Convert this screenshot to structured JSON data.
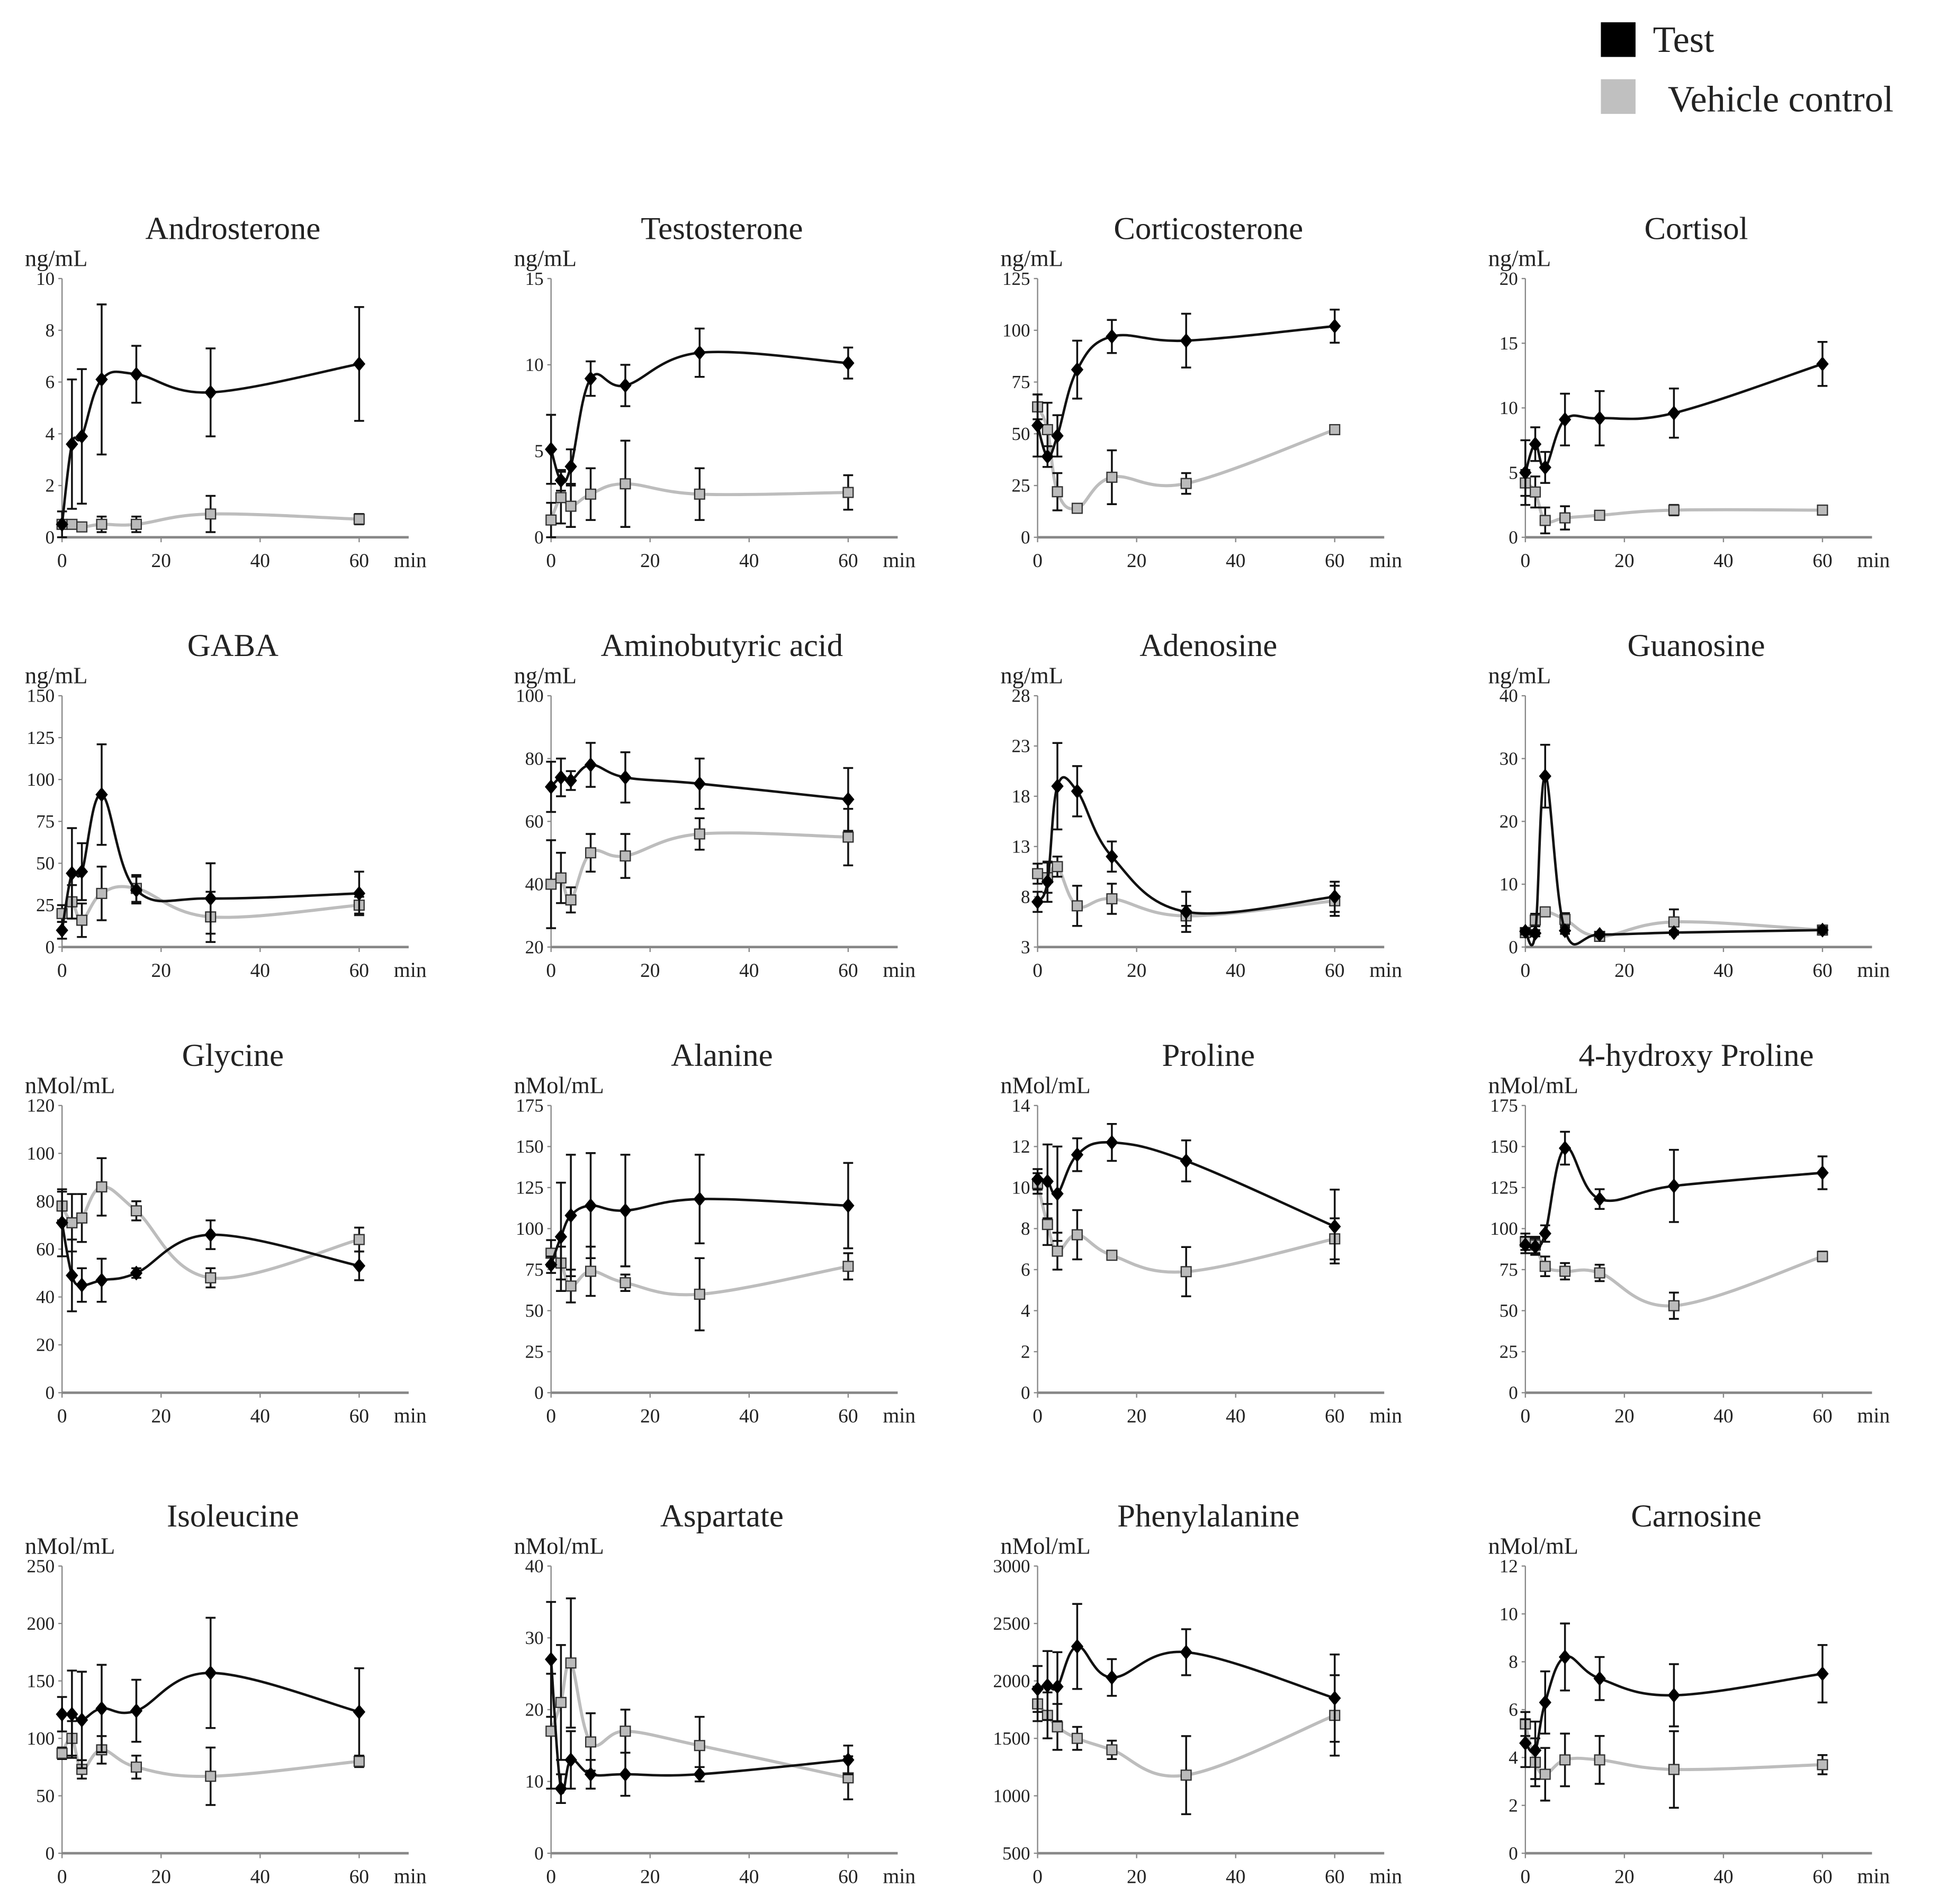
{
  "legend": {
    "items": [
      {
        "label": "Test",
        "color": "#000000"
      },
      {
        "label": "Vehicle control",
        "color": "#c0c0c0"
      }
    ]
  },
  "chart_data": [
    {
      "type": "line",
      "title": "Androsterone",
      "ylabel": "ng/mL",
      "xlabel": "min",
      "x": [
        0,
        2,
        4,
        8,
        15,
        30,
        60
      ],
      "xticks": [
        0,
        20,
        40,
        60
      ],
      "ylim": [
        0,
        10
      ],
      "yticks": [
        0,
        2,
        4,
        6,
        8,
        10
      ],
      "series": [
        {
          "name": "Test",
          "values": [
            0.5,
            3.6,
            3.9,
            6.1,
            6.3,
            5.6,
            6.7
          ],
          "err": [
            0.5,
            2.5,
            2.6,
            2.9,
            1.1,
            1.7,
            2.2
          ]
        },
        {
          "name": "Vehicle control",
          "values": [
            0.5,
            0.5,
            0.4,
            0.5,
            0.5,
            0.9,
            0.7
          ],
          "err": [
            0.1,
            0.1,
            0.1,
            0.3,
            0.3,
            0.7,
            0.2
          ]
        }
      ]
    },
    {
      "type": "line",
      "title": "Testosterone",
      "ylabel": "ng/mL",
      "xlabel": "min",
      "x": [
        0,
        2,
        4,
        8,
        15,
        30,
        60
      ],
      "xticks": [
        0,
        20,
        40,
        60
      ],
      "ylim": [
        0,
        15
      ],
      "yticks": [
        0,
        5,
        10,
        15
      ],
      "series": [
        {
          "name": "Test",
          "values": [
            5.1,
            3.3,
            4.1,
            9.2,
            8.8,
            10.7,
            10.1
          ],
          "err": [
            2,
            0.6,
            1,
            1,
            1.2,
            1.4,
            0.9
          ]
        },
        {
          "name": "Vehicle control",
          "values": [
            1.0,
            2.3,
            1.8,
            2.5,
            3.1,
            2.5,
            2.6
          ],
          "err": [
            1,
            1.5,
            1.2,
            1.5,
            2.5,
            1.5,
            1
          ]
        }
      ]
    },
    {
      "type": "line",
      "title": "Corticosterone",
      "ylabel": "ng/mL",
      "xlabel": "min",
      "x": [
        0,
        2,
        4,
        8,
        15,
        30,
        60
      ],
      "xticks": [
        0,
        20,
        40,
        60
      ],
      "ylim": [
        0,
        125
      ],
      "yticks": [
        0,
        25,
        50,
        75,
        100,
        125
      ],
      "series": [
        {
          "name": "Test",
          "values": [
            54,
            39,
            49,
            81,
            97,
            95,
            102
          ],
          "err": [
            15,
            5,
            10,
            14,
            8,
            13,
            8
          ]
        },
        {
          "name": "Vehicle control",
          "values": [
            63,
            52,
            22,
            14,
            29,
            26,
            52
          ],
          "err": [
            6,
            13,
            9,
            2,
            13,
            5,
            2
          ]
        }
      ]
    },
    {
      "type": "line",
      "title": "Cortisol",
      "ylabel": "ng/mL",
      "xlabel": "min",
      "x": [
        0,
        2,
        4,
        8,
        15,
        30,
        60
      ],
      "xticks": [
        0,
        20,
        40,
        60
      ],
      "ylim": [
        0,
        20
      ],
      "yticks": [
        0,
        5,
        10,
        15,
        20
      ],
      "series": [
        {
          "name": "Test",
          "values": [
            5,
            7.2,
            5.4,
            9.1,
            9.2,
            9.6,
            13.4
          ],
          "err": [
            2.5,
            1.3,
            1.2,
            2,
            2.1,
            1.9,
            1.7
          ]
        },
        {
          "name": "Vehicle control",
          "values": [
            4.2,
            3.5,
            1.3,
            1.5,
            1.7,
            2.1,
            2.1
          ],
          "err": [
            1,
            1.2,
            1,
            0.9,
            0.2,
            0.4,
            0.3
          ]
        }
      ]
    },
    {
      "type": "line",
      "title": "GABA",
      "ylabel": "ng/mL",
      "xlabel": "min",
      "x": [
        0,
        2,
        4,
        8,
        15,
        30,
        60
      ],
      "xticks": [
        0,
        20,
        40,
        60
      ],
      "ylim": [
        0,
        150
      ],
      "yticks": [
        0,
        25,
        50,
        75,
        100,
        125,
        150
      ],
      "series": [
        {
          "name": "Test",
          "values": [
            10,
            44,
            45,
            91,
            34,
            29,
            32
          ],
          "err": [
            5,
            27,
            17,
            30,
            8,
            21,
            13
          ]
        },
        {
          "name": "Vehicle control",
          "values": [
            20,
            27,
            16,
            32,
            35,
            18,
            25
          ],
          "err": [
            5,
            10,
            10,
            16,
            8,
            15,
            5
          ]
        }
      ]
    },
    {
      "type": "line",
      "title": "Aminobutyric  acid",
      "ylabel": "ng/mL",
      "xlabel": "min",
      "x": [
        0,
        2,
        4,
        8,
        15,
        30,
        60
      ],
      "xticks": [
        0,
        20,
        40,
        60
      ],
      "ylim": [
        20,
        100
      ],
      "yticks": [
        20,
        40,
        60,
        80,
        100
      ],
      "series": [
        {
          "name": "Test",
          "values": [
            71,
            74,
            73,
            78,
            74,
            72,
            67
          ],
          "err": [
            8,
            6,
            3,
            7,
            8,
            8,
            10
          ]
        },
        {
          "name": "Vehicle control",
          "values": [
            40,
            42,
            35,
            50,
            49,
            56,
            55
          ],
          "err": [
            14,
            8,
            4,
            6,
            7,
            5,
            9
          ]
        }
      ]
    },
    {
      "type": "line",
      "title": "Adenosine",
      "ylabel": "ng/mL",
      "xlabel": "min",
      "x": [
        0,
        2,
        4,
        8,
        15,
        30,
        60
      ],
      "xticks": [
        0,
        20,
        40,
        60
      ],
      "ylim": [
        3,
        28
      ],
      "yticks": [
        3,
        8,
        13,
        18,
        23,
        28
      ],
      "series": [
        {
          "name": "Test",
          "values": [
            7.5,
            9.5,
            19,
            18.5,
            12,
            6.5,
            8
          ],
          "err": [
            1,
            2,
            4.3,
            2.5,
            1.5,
            2,
            1.5
          ]
        },
        {
          "name": "Vehicle control",
          "values": [
            10.3,
            9.9,
            11,
            7.1,
            7.8,
            6.1,
            7.6
          ],
          "err": [
            1,
            1.5,
            1,
            2,
            1.5,
            1,
            1.5
          ]
        }
      ]
    },
    {
      "type": "line",
      "title": "Guanosine",
      "ylabel": "ng/mL",
      "xlabel": "min",
      "x": [
        0,
        2,
        4,
        8,
        15,
        30,
        60
      ],
      "xticks": [
        0,
        20,
        40,
        60
      ],
      "ylim": [
        0,
        40
      ],
      "yticks": [
        0,
        10,
        20,
        30,
        40
      ],
      "series": [
        {
          "name": "Test",
          "values": [
            2.5,
            2.2,
            27.2,
            2.6,
            2,
            2.3,
            2.7
          ],
          "err": [
            0.5,
            0.5,
            5,
            0.5,
            0.3,
            0.3,
            0.5
          ]
        },
        {
          "name": "Vehicle control",
          "values": [
            2.3,
            4.3,
            5.6,
            4.4,
            1.7,
            4.0,
            2.7
          ],
          "err": [
            0.5,
            1,
            0.5,
            1,
            0.5,
            2,
            0.5
          ]
        }
      ]
    },
    {
      "type": "line",
      "title": "Glycine",
      "ylabel": "nMol/mL",
      "xlabel": "min",
      "x": [
        0,
        2,
        4,
        8,
        15,
        30,
        60
      ],
      "xticks": [
        0,
        20,
        40,
        60
      ],
      "ylim": [
        0,
        120
      ],
      "yticks": [
        0,
        20,
        40,
        60,
        80,
        100,
        120
      ],
      "series": [
        {
          "name": "Test",
          "values": [
            71,
            49,
            45,
            47,
            50,
            66,
            53
          ],
          "err": [
            14,
            15,
            7,
            9,
            2,
            6,
            6
          ]
        },
        {
          "name": "Vehicle control",
          "values": [
            78,
            71,
            73,
            86,
            76,
            48,
            64
          ],
          "err": [
            6,
            12,
            10,
            12,
            4,
            4,
            5
          ]
        }
      ]
    },
    {
      "type": "line",
      "title": "Alanine",
      "ylabel": "nMol/mL",
      "xlabel": "min",
      "x": [
        0,
        2,
        4,
        8,
        15,
        30,
        60
      ],
      "xticks": [
        0,
        20,
        40,
        60
      ],
      "ylim": [
        0,
        175
      ],
      "yticks": [
        0,
        25,
        50,
        75,
        100,
        125,
        150,
        175
      ],
      "series": [
        {
          "name": "Test",
          "values": [
            78,
            95,
            108,
            114,
            111,
            118,
            114
          ],
          "err": [
            5,
            33,
            37,
            32,
            34,
            27,
            26
          ]
        },
        {
          "name": "Vehicle control",
          "values": [
            85,
            79,
            65,
            74,
            67,
            60,
            77
          ],
          "err": [
            8,
            10,
            10,
            15,
            5,
            22,
            8
          ]
        }
      ]
    },
    {
      "type": "line",
      "title": "Proline",
      "ylabel": "nMol/mL",
      "xlabel": "min",
      "x": [
        0,
        2,
        4,
        8,
        15,
        30,
        60
      ],
      "xticks": [
        0,
        20,
        40,
        60
      ],
      "ylim": [
        0,
        14
      ],
      "yticks": [
        0,
        2,
        4,
        6,
        8,
        10,
        12,
        14
      ],
      "series": [
        {
          "name": "Test",
          "values": [
            10.4,
            10.3,
            9.7,
            11.6,
            12.2,
            11.3,
            8.1
          ],
          "err": [
            0.5,
            1.8,
            2.3,
            0.8,
            0.9,
            1,
            1.8
          ]
        },
        {
          "name": "Vehicle control",
          "values": [
            10.2,
            8.2,
            6.9,
            7.7,
            6.7,
            5.9,
            7.5
          ],
          "err": [
            0.5,
            1,
            0.9,
            1.2,
            0.2,
            1.2,
            1
          ]
        }
      ]
    },
    {
      "type": "line",
      "title": "4-hydroxy Proline",
      "ylabel": "nMol/mL",
      "xlabel": "min",
      "x": [
        0,
        2,
        4,
        8,
        15,
        30,
        60
      ],
      "xticks": [
        0,
        20,
        40,
        60
      ],
      "ylim": [
        0,
        175
      ],
      "yticks": [
        0,
        25,
        50,
        75,
        100,
        125,
        150,
        175
      ],
      "series": [
        {
          "name": "Test",
          "values": [
            90,
            89,
            97,
            149,
            118,
            126,
            134
          ],
          "err": [
            5,
            5,
            5,
            10,
            6,
            22,
            10
          ]
        },
        {
          "name": "Vehicle control",
          "values": [
            92,
            90,
            77,
            74,
            73,
            53,
            83
          ],
          "err": [
            5,
            5,
            6,
            5,
            5,
            8,
            3
          ]
        }
      ]
    },
    {
      "type": "line",
      "title": "Isoleucine",
      "ylabel": "nMol/mL",
      "xlabel": "min",
      "x": [
        0,
        2,
        4,
        8,
        15,
        30,
        60
      ],
      "xticks": [
        0,
        20,
        40,
        60
      ],
      "ylim": [
        0,
        250
      ],
      "yticks": [
        0,
        50,
        100,
        150,
        200,
        250
      ],
      "series": [
        {
          "name": "Test",
          "values": [
            121,
            121,
            116,
            126,
            124,
            157,
            123
          ],
          "err": [
            15,
            38,
            42,
            38,
            27,
            48,
            38
          ]
        },
        {
          "name": "Vehicle control",
          "values": [
            87,
            100,
            73,
            90,
            75,
            67,
            80
          ],
          "err": [
            5,
            15,
            8,
            12,
            10,
            25,
            5
          ]
        }
      ]
    },
    {
      "type": "line",
      "title": "Aspartate",
      "ylabel": "nMol/mL",
      "xlabel": "min",
      "x": [
        0,
        2,
        4,
        8,
        15,
        30,
        60
      ],
      "xticks": [
        0,
        20,
        40,
        60
      ],
      "ylim": [
        0,
        40
      ],
      "yticks": [
        0,
        10,
        20,
        30,
        40
      ],
      "series": [
        {
          "name": "Test",
          "values": [
            27,
            9,
            13,
            11,
            11,
            11,
            13
          ],
          "err": [
            8,
            2,
            4,
            2,
            3,
            1,
            2
          ]
        },
        {
          "name": "Vehicle control",
          "values": [
            17,
            21,
            26.5,
            15.5,
            17,
            15,
            10.5
          ],
          "err": [
            8,
            8,
            9,
            4,
            3,
            4,
            3
          ]
        }
      ]
    },
    {
      "type": "line",
      "title": "Phenylalanine",
      "ylabel": "nMol/mL",
      "xlabel": "min",
      "x": [
        0,
        2,
        4,
        8,
        15,
        30,
        60
      ],
      "xticks": [
        0,
        20,
        40,
        60
      ],
      "ylim": [
        500,
        3000
      ],
      "yticks": [
        500,
        1000,
        1500,
        2000,
        2500,
        3000
      ],
      "series": [
        {
          "name": "Test",
          "values": [
            1930,
            1960,
            1950,
            2300,
            2030,
            2250,
            1850
          ],
          "err": [
            200,
            300,
            300,
            370,
            160,
            200,
            380
          ]
        },
        {
          "name": "Vehicle control",
          "values": [
            1800,
            1700,
            1600,
            1500,
            1400,
            1180,
            1700
          ],
          "err": [
            150,
            200,
            200,
            100,
            80,
            340,
            350
          ]
        }
      ]
    },
    {
      "type": "line",
      "title": "Carnosine",
      "ylabel": "nMol/mL",
      "xlabel": "min",
      "x": [
        0,
        2,
        4,
        8,
        15,
        30,
        60
      ],
      "xticks": [
        0,
        20,
        40,
        60
      ],
      "ylim": [
        0,
        12
      ],
      "yticks": [
        0,
        2,
        4,
        6,
        8,
        10,
        12
      ],
      "series": [
        {
          "name": "Test",
          "values": [
            4.6,
            4.3,
            6.3,
            8.2,
            7.3,
            6.6,
            7.5
          ],
          "err": [
            1,
            1.2,
            1.3,
            1.4,
            0.9,
            1.3,
            1.2
          ]
        },
        {
          "name": "Vehicle control",
          "values": [
            5.4,
            3.8,
            3.3,
            3.9,
            3.9,
            3.5,
            3.7
          ],
          "err": [
            0.5,
            1,
            1.1,
            1.1,
            1,
            1.6,
            0.4
          ]
        }
      ]
    }
  ]
}
